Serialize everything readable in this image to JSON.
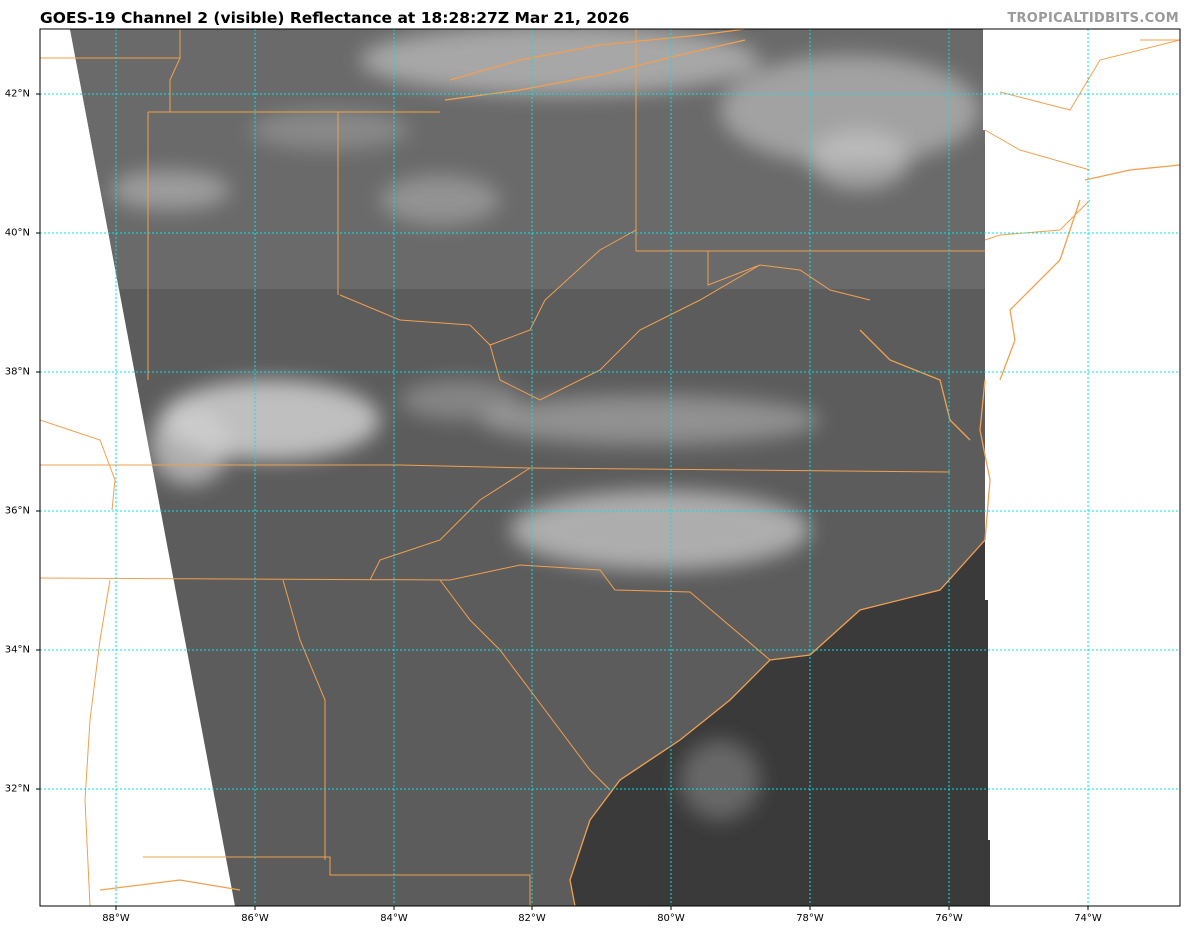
{
  "title": "GOES-19 Channel 2 (visible) Reflectance at 18:28:27Z Mar 21, 2026",
  "watermark": "TROPICALTIDBITS.COM",
  "lat_labels": [
    "42°N",
    "40°N",
    "38°N",
    "36°N",
    "34°N",
    "32°N"
  ],
  "lon_labels": [
    "88°W",
    "86°W",
    "84°W",
    "82°W",
    "80°W",
    "78°W",
    "76°W",
    "74°W"
  ],
  "colors": {
    "gridline": "#00e5e5",
    "borders": "#f0a050",
    "land": "#5a5a5a",
    "ocean": "#383838",
    "cloud": "#d8d8d8",
    "watermark": "#9a9a9a"
  }
}
